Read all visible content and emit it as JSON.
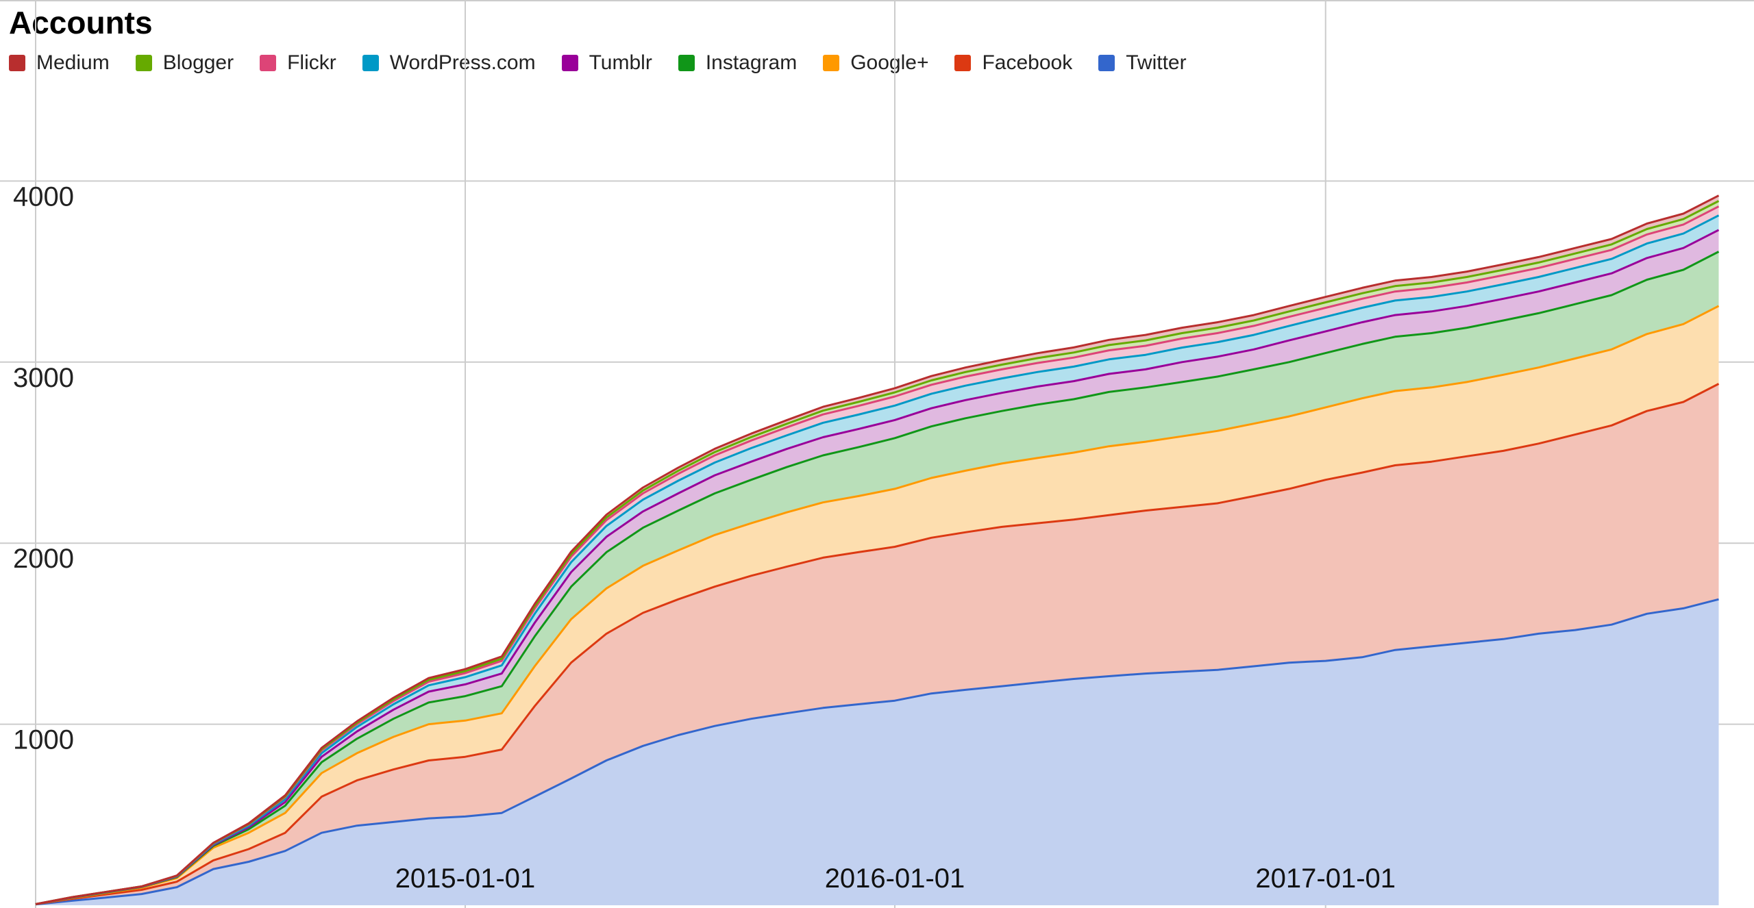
{
  "chart_data": {
    "type": "area",
    "stacked": true,
    "title": "Accounts",
    "xlabel": "",
    "ylabel": "",
    "x_range": [
      "2014-01-01",
      "2017-12-31"
    ],
    "ylim": [
      0,
      5000
    ],
    "grid": true,
    "legend_position": "top-left",
    "y_ticks": [
      1000,
      2000,
      3000,
      4000
    ],
    "x_ticks": [
      "2015-01-01",
      "2016-01-01",
      "2017-01-01"
    ],
    "x": [
      "2014-01-01",
      "2014-02-01",
      "2014-03-01",
      "2014-04-01",
      "2014-05-01",
      "2014-06-01",
      "2014-07-01",
      "2014-08-01",
      "2014-09-01",
      "2014-10-01",
      "2014-11-01",
      "2014-12-01",
      "2015-01-01",
      "2015-02-01",
      "2015-03-01",
      "2015-04-01",
      "2015-05-01",
      "2015-06-01",
      "2015-07-01",
      "2015-08-01",
      "2015-09-01",
      "2015-10-01",
      "2015-11-01",
      "2015-12-01",
      "2016-01-01",
      "2016-02-01",
      "2016-03-01",
      "2016-04-01",
      "2016-05-01",
      "2016-06-01",
      "2016-07-01",
      "2016-08-01",
      "2016-09-01",
      "2016-10-01",
      "2016-11-01",
      "2016-12-01",
      "2017-01-01",
      "2017-02-01",
      "2017-03-01",
      "2017-04-01",
      "2017-05-01",
      "2017-06-01",
      "2017-07-01",
      "2017-08-01",
      "2017-09-01",
      "2017-10-01",
      "2017-11-01",
      "2017-12-01"
    ],
    "series": [
      {
        "name": "Twitter",
        "color": "#3366cc",
        "fill": "#c2d1f0",
        "values": [
          5,
          25,
          42,
          62,
          100,
          200,
          240,
          300,
          400,
          440,
          460,
          480,
          490,
          510,
          600,
          700,
          800,
          880,
          940,
          990,
          1030,
          1060,
          1090,
          1110,
          1130,
          1170,
          1190,
          1210,
          1230,
          1250,
          1265,
          1280,
          1290,
          1300,
          1320,
          1340,
          1350,
          1370,
          1410,
          1430,
          1450,
          1470,
          1500,
          1520,
          1550,
          1610,
          1640,
          1690
        ]
      },
      {
        "name": "Facebook",
        "color": "#dc3912",
        "fill": "#f3c2b7",
        "values": [
          1,
          10,
          17,
          23,
          30,
          48,
          70,
          100,
          200,
          250,
          290,
          320,
          330,
          350,
          500,
          640,
          700,
          735,
          750,
          770,
          790,
          810,
          830,
          840,
          850,
          860,
          870,
          880,
          880,
          880,
          890,
          900,
          910,
          920,
          940,
          960,
          1000,
          1020,
          1020,
          1020,
          1030,
          1040,
          1050,
          1080,
          1100,
          1120,
          1140,
          1190
        ]
      },
      {
        "name": "Google+",
        "color": "#ff9900",
        "fill": "#fddeaf",
        "values": [
          0,
          5,
          8,
          12,
          20,
          70,
          90,
          110,
          130,
          150,
          180,
          200,
          200,
          200,
          220,
          240,
          250,
          260,
          270,
          285,
          290,
          300,
          305,
          310,
          320,
          330,
          340,
          350,
          360,
          370,
          380,
          380,
          390,
          400,
          400,
          400,
          400,
          410,
          410,
          410,
          410,
          420,
          420,
          420,
          420,
          425,
          430,
          430
        ]
      },
      {
        "name": "Instagram",
        "color": "#109618",
        "fill": "#b9dfb9",
        "values": [
          0,
          2,
          3,
          4,
          6,
          10,
          20,
          40,
          60,
          80,
          100,
          120,
          135,
          150,
          165,
          180,
          200,
          210,
          220,
          230,
          240,
          250,
          260,
          270,
          280,
          285,
          290,
          290,
          295,
          295,
          300,
          300,
          300,
          300,
          300,
          300,
          300,
          300,
          300,
          300,
          300,
          300,
          300,
          300,
          300,
          300,
          300,
          300
        ]
      },
      {
        "name": "Tumblr",
        "color": "#990099",
        "fill": "#e0b9e0",
        "values": [
          0,
          1,
          1,
          1,
          2,
          5,
          10,
          20,
          30,
          40,
          50,
          60,
          65,
          70,
          75,
          80,
          85,
          90,
          95,
          100,
          100,
          100,
          100,
          100,
          100,
          100,
          100,
          100,
          100,
          100,
          100,
          100,
          110,
          110,
          110,
          120,
          120,
          120,
          120,
          120,
          120,
          120,
          120,
          120,
          120,
          120,
          120,
          120
        ]
      },
      {
        "name": "WordPress.com",
        "color": "#0099c6",
        "fill": "#b2e0ee",
        "values": [
          0,
          1,
          1,
          1,
          2,
          4,
          8,
          15,
          20,
          25,
          30,
          35,
          40,
          45,
          50,
          55,
          60,
          65,
          70,
          70,
          75,
          75,
          80,
          80,
          80,
          80,
          80,
          80,
          80,
          80,
          80,
          80,
          80,
          80,
          80,
          80,
          80,
          80,
          80,
          80,
          80,
          80,
          80,
          80,
          80,
          80,
          80,
          80
        ]
      },
      {
        "name": "Flickr",
        "color": "#dd4477",
        "fill": "#f4c6d5",
        "values": [
          0,
          1,
          1,
          1,
          2,
          4,
          8,
          12,
          15,
          15,
          18,
          20,
          22,
          25,
          28,
          30,
          32,
          35,
          38,
          40,
          42,
          44,
          46,
          48,
          50,
          50,
          50,
          50,
          50,
          50,
          50,
          50,
          50,
          50,
          50,
          50,
          50,
          50,
          50,
          50,
          50,
          50,
          50,
          50,
          50,
          50,
          50,
          50
        ]
      },
      {
        "name": "Blogger",
        "color": "#66aa00",
        "fill": "#d1e6b2",
        "values": [
          0,
          0,
          0,
          0,
          1,
          2,
          3,
          5,
          7,
          8,
          9,
          10,
          11,
          12,
          13,
          14,
          15,
          16,
          17,
          18,
          19,
          20,
          21,
          22,
          23,
          24,
          25,
          26,
          27,
          28,
          29,
          30,
          30,
          30,
          30,
          30,
          30,
          30,
          30,
          30,
          30,
          30,
          30,
          30,
          30,
          30,
          30,
          30
        ]
      },
      {
        "name": "Medium",
        "color": "#b82e2e",
        "fill": "#eac0c0",
        "values": [
          0,
          0,
          0,
          0,
          1,
          2,
          3,
          5,
          7,
          8,
          9,
          10,
          11,
          12,
          13,
          14,
          15,
          16,
          17,
          18,
          19,
          20,
          21,
          22,
          23,
          24,
          25,
          26,
          27,
          28,
          29,
          30,
          30,
          30,
          30,
          30,
          30,
          30,
          30,
          30,
          30,
          30,
          30,
          30,
          30,
          30,
          30,
          30
        ]
      }
    ]
  }
}
